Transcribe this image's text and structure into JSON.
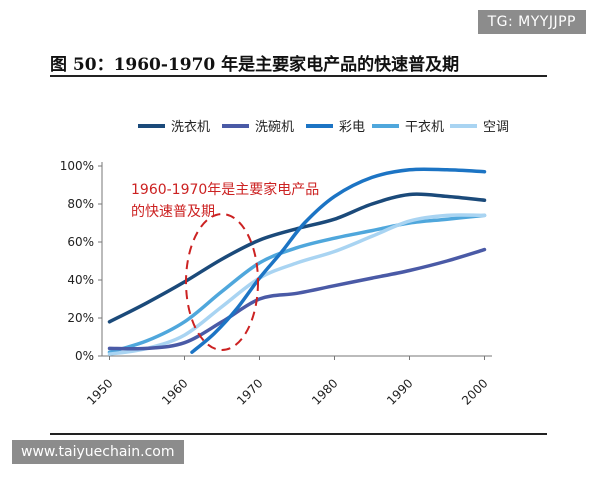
{
  "watermarks": {
    "top": "TG: MYYJJPP",
    "bottom": "www.taiyuechain.com"
  },
  "figure_title": "图 50：1960-1970 年是主要家电产品的快速普及期",
  "colors": {
    "洗衣机": "#1b4a7a",
    "洗碗机": "#4a5aa6",
    "彩电": "#1c74c4",
    "干衣机": "#4fa7dc",
    "空调": "#a9d4f2",
    "annotation": "#cc2222"
  },
  "chart_data": {
    "type": "line",
    "title": "",
    "xlabel": "",
    "ylabel": "",
    "x_ticks": [
      "1950",
      "1960",
      "1970",
      "1980",
      "1990",
      "2000"
    ],
    "y_ticks": [
      "0%",
      "20%",
      "40%",
      "60%",
      "80%",
      "100%"
    ],
    "xlim": [
      1949,
      2001
    ],
    "ylim": [
      0,
      100
    ],
    "grid": false,
    "legend_position": "top",
    "series": [
      {
        "name": "洗衣机",
        "x": [
          1950,
          1955,
          1960,
          1965,
          1970,
          1975,
          1980,
          1985,
          1990,
          1995,
          2000
        ],
        "y": [
          18,
          28,
          39,
          51,
          61,
          67,
          72,
          80,
          85,
          84,
          82
        ]
      },
      {
        "name": "洗碗机",
        "x": [
          1950,
          1955,
          1960,
          1965,
          1970,
          1975,
          1980,
          1985,
          1990,
          1995,
          2000
        ],
        "y": [
          4,
          4,
          7,
          18,
          30,
          33,
          37,
          41,
          45,
          50,
          56
        ]
      },
      {
        "name": "彩电",
        "x": [
          1961,
          1964,
          1967,
          1970,
          1973,
          1976,
          1980,
          1985,
          1990,
          1995,
          2000
        ],
        "y": [
          2,
          12,
          25,
          41,
          55,
          70,
          84,
          94,
          98,
          98,
          97
        ]
      },
      {
        "name": "干衣机",
        "x": [
          1950,
          1955,
          1960,
          1965,
          1970,
          1975,
          1980,
          1985,
          1990,
          1995,
          2000
        ],
        "y": [
          2,
          8,
          18,
          34,
          49,
          57,
          62,
          66,
          70,
          72,
          74
        ]
      },
      {
        "name": "空调",
        "x": [
          1950,
          1955,
          1960,
          1965,
          1970,
          1975,
          1980,
          1985,
          1990,
          1995,
          2000
        ],
        "y": [
          1,
          4,
          11,
          26,
          41,
          49,
          55,
          63,
          71,
          74,
          74
        ]
      }
    ],
    "annotation": {
      "text_lines": [
        "1960-1970年是主要家电产品",
        "的快速普及期"
      ],
      "highlight_x_range": [
        1960,
        1970
      ]
    }
  }
}
